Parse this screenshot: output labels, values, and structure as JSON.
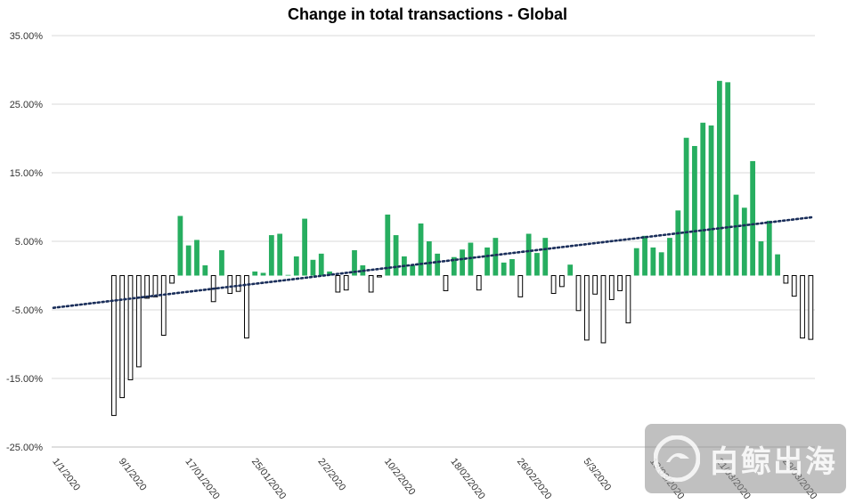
{
  "chart_data": {
    "type": "bar",
    "title": "Change in total transactions - Global",
    "xlabel": "",
    "ylabel": "",
    "ylim": [
      -0.25,
      0.35
    ],
    "y_ticks": [
      {
        "value": 0.35,
        "label": "35.00%"
      },
      {
        "value": 0.25,
        "label": "25.00%"
      },
      {
        "value": 0.15,
        "label": "15.00%"
      },
      {
        "value": 0.05,
        "label": "5.00%"
      },
      {
        "value": -0.05,
        "label": "-5.00%"
      },
      {
        "value": -0.15,
        "label": "-15.00%"
      },
      {
        "value": -0.25,
        "label": "-25.00%"
      }
    ],
    "x_tick_labels": [
      {
        "index": 0,
        "label": "1/1/2020"
      },
      {
        "index": 8,
        "label": "9/1/2020"
      },
      {
        "index": 16,
        "label": "17/01/2020"
      },
      {
        "index": 24,
        "label": "25/01/2020"
      },
      {
        "index": 32,
        "label": "2/2/2020"
      },
      {
        "index": 40,
        "label": "10/2/2020"
      },
      {
        "index": 48,
        "label": "18/02/2020"
      },
      {
        "index": 56,
        "label": "26/02/2020"
      },
      {
        "index": 64,
        "label": "5/3/2020"
      },
      {
        "index": 72,
        "label": "13/03/2020"
      },
      {
        "index": 80,
        "label": "21/03/2020"
      },
      {
        "index": 88,
        "label": "29/03/2020"
      }
    ],
    "categories_count": 92,
    "values": [
      null,
      null,
      null,
      null,
      null,
      null,
      null,
      -0.204,
      -0.178,
      -0.152,
      -0.133,
      -0.033,
      -0.031,
      -0.087,
      -0.011,
      0.087,
      0.044,
      0.052,
      0.015,
      -0.038,
      0.037,
      -0.026,
      -0.023,
      -0.091,
      0.006,
      0.004,
      0.059,
      0.061,
      0.001,
      0.028,
      0.083,
      0.023,
      0.032,
      0.006,
      -0.024,
      -0.021,
      0.037,
      0.015,
      -0.024,
      -0.002,
      0.089,
      0.059,
      0.028,
      0.015,
      0.076,
      0.05,
      0.032,
      -0.022,
      0.027,
      0.038,
      0.048,
      -0.021,
      0.041,
      0.055,
      0.019,
      0.024,
      -0.031,
      0.061,
      0.033,
      0.055,
      -0.026,
      -0.016,
      0.016,
      -0.051,
      -0.094,
      -0.027,
      -0.098,
      -0.035,
      -0.022,
      -0.069,
      0.04,
      0.058,
      0.041,
      0.034,
      0.055,
      0.095,
      0.201,
      0.189,
      0.223,
      0.219,
      0.284,
      0.282,
      0.118,
      0.099,
      0.167,
      0.05,
      0.08,
      0.031,
      -0.011,
      -0.03,
      -0.091,
      -0.093
    ],
    "trendline": {
      "start": -0.047,
      "end": 0.085,
      "style": "dotted",
      "color": "#1a2e5a"
    },
    "colors": {
      "positive": "#27ae60",
      "negative_fill": "#ffffff",
      "negative_stroke": "#000000",
      "grid": "#d9d9d9"
    }
  },
  "watermark": {
    "text": "白鲸出海"
  }
}
